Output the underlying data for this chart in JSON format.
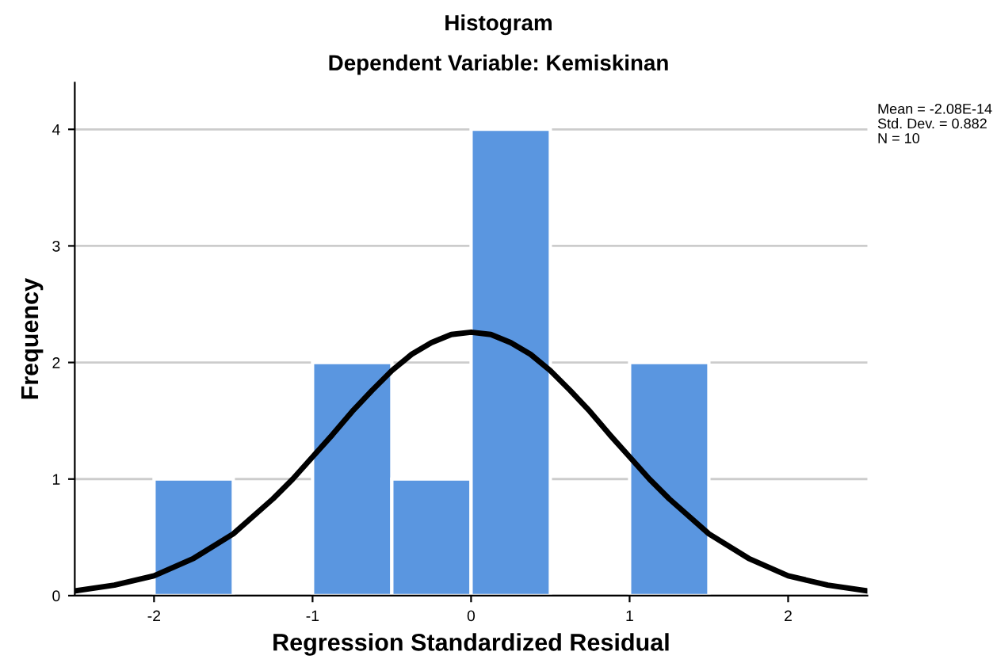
{
  "chart_data": {
    "type": "histogram",
    "title": "Histogram",
    "subtitle": "Dependent Variable: Kemiskinan",
    "xlabel": "Regression Standardized Residual",
    "ylabel": "Frequency",
    "bins": [
      -2,
      -1.5,
      -1,
      -0.5,
      0,
      0.5,
      1,
      1.5
    ],
    "values": [
      1,
      0,
      2,
      1,
      4,
      0,
      2
    ],
    "color": "#5a96e0",
    "series": [
      {
        "type": "line",
        "color": "#000000",
        "x": [
          -2.5,
          -2.25,
          -2,
          -1.75,
          -1.5,
          -1.25,
          -1.125,
          -1,
          -0.875,
          -0.75,
          -0.625,
          -0.5,
          -0.375,
          -0.25,
          -0.125,
          0,
          0.125,
          0.25,
          0.375,
          0.5,
          0.625,
          0.75,
          0.875,
          1,
          1.125,
          1.25,
          1.5,
          1.75,
          2,
          2.25,
          2.5
        ],
        "values": [
          0.04,
          0.09,
          0.17,
          0.32,
          0.53,
          0.83,
          1.0,
          1.19,
          1.38,
          1.58,
          1.76,
          1.93,
          2.07,
          2.17,
          2.24,
          2.26,
          2.24,
          2.17,
          2.07,
          1.93,
          1.76,
          1.58,
          1.38,
          1.19,
          1.0,
          0.83,
          0.53,
          0.32,
          0.17,
          0.09,
          0.04
        ]
      }
    ],
    "xlim": [
      -2.5,
      2.5
    ],
    "xticks": [
      -2,
      -1,
      0,
      1,
      2
    ],
    "ylim": [
      0,
      4.4
    ],
    "yticks": [
      0,
      1,
      2,
      3,
      4
    ],
    "grid": "y",
    "annotations": [
      "Mean = -2.08E-14",
      "Std. Dev. = 0.882",
      "N = 10"
    ]
  }
}
